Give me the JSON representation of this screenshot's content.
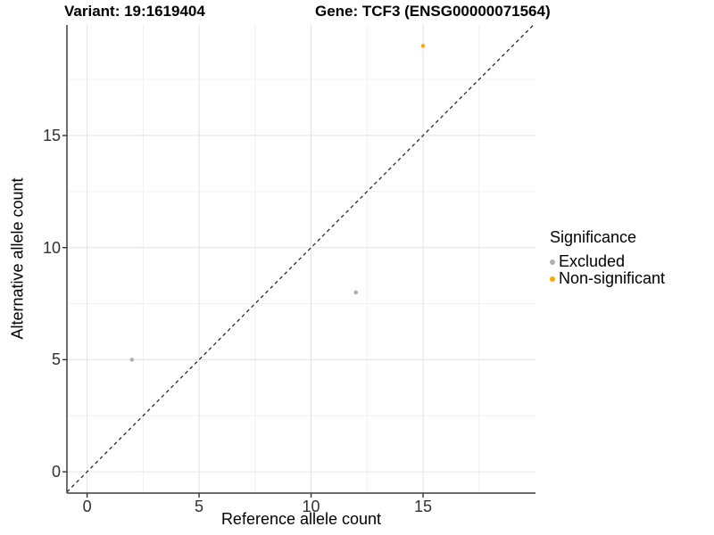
{
  "titles": {
    "variant": "Variant: 19:1619404",
    "gene": "Gene: TCF3 (ENSG00000071564)"
  },
  "chart_data": {
    "type": "scatter",
    "xlabel": "Reference allele count",
    "ylabel": "Alternative allele count",
    "xlim": [
      -0.9,
      20.02
    ],
    "ylim": [
      -0.95,
      19.93
    ],
    "x_ticks": [
      "0",
      "5",
      "10",
      "15"
    ],
    "y_ticks": [
      "0",
      "5",
      "10",
      "15"
    ],
    "x_tick_values": [
      0,
      5,
      10,
      15
    ],
    "y_tick_values": [
      0,
      5,
      10,
      15
    ],
    "x_minor_values": [
      2.5,
      7.5,
      12.5,
      17.5
    ],
    "y_minor_values": [
      2.5,
      7.5,
      12.5,
      17.5
    ],
    "grid": true,
    "legend_position": "right",
    "series": [
      {
        "name": "Excluded",
        "color": "#B0B0B0",
        "point_radius": 2.3,
        "points": [
          {
            "x": 2,
            "y": 5
          },
          {
            "x": 12,
            "y": 8
          }
        ]
      },
      {
        "name": "Non-significant",
        "color": "#FFA500",
        "point_radius": 2.2,
        "points": [
          {
            "x": 15,
            "y": 19
          }
        ]
      }
    ],
    "reference_line": {
      "equation": "y = x",
      "style": "dashed",
      "color": "#1a1a1a"
    }
  },
  "legend": {
    "title": "Significance",
    "entries": [
      {
        "label": "Excluded",
        "color": "#B0B0B0"
      },
      {
        "label": "Non-significant",
        "color": "#FFA500"
      }
    ]
  },
  "colors": {
    "major_grid": "#E4E4E4",
    "minor_grid": "#F0F0F0",
    "axis_line": "#3f3f3f",
    "tick_mark": "#333333"
  }
}
